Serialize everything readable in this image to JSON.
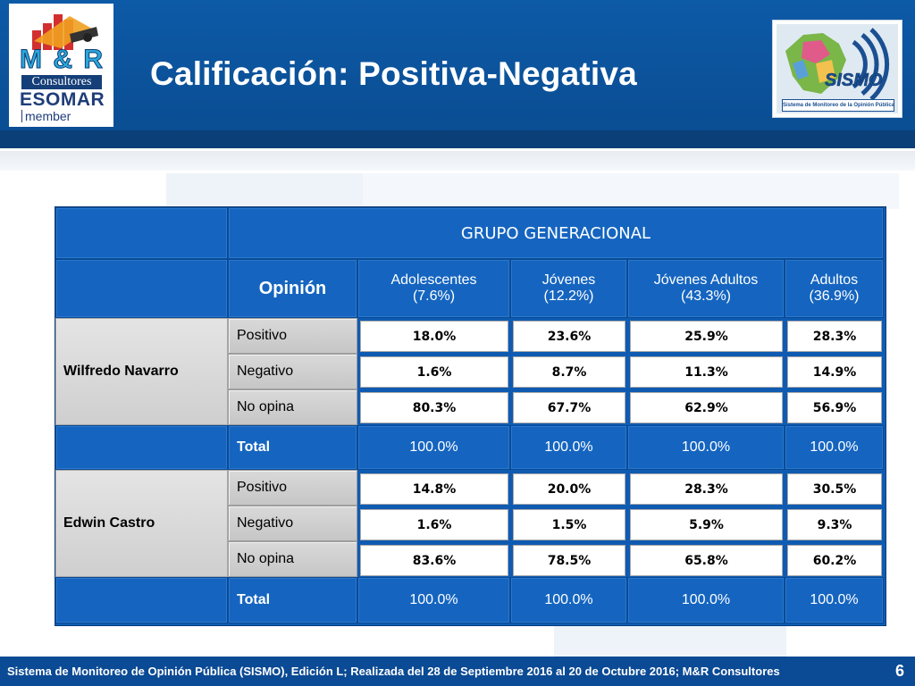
{
  "slide": {
    "title": "Calificación: Positiva-Negativa",
    "page_number": "6",
    "footer": "Sistema de Monitoreo de Opinión Pública (SISMO), Edición L; Realizada del 28 de Septiembre 2016 al 20 de Octubre 2016; M&R Consultores"
  },
  "logos": {
    "left": {
      "brand": "M & R",
      "sub": "Consultores",
      "esomar": "ESOMAR",
      "member": "member"
    },
    "right": {
      "brand": "SISMO",
      "caption": "Sistema de Monitoreo de la Opinión Pública"
    }
  },
  "table": {
    "group_header": "GRUPO GENERACIONAL",
    "opinion_header": "Opinión",
    "columns": [
      {
        "name": "Adolescentes",
        "pct": "(7.6%)"
      },
      {
        "name": "Jóvenes",
        "pct": "(12.2%)"
      },
      {
        "name": "Jóvenes Adultos",
        "pct": "(43.3%)"
      },
      {
        "name": "Adultos",
        "pct": "(36.9%)"
      }
    ],
    "persons": [
      {
        "name": "Wilfredo Navarro",
        "rows": [
          {
            "label": "Positivo",
            "values": [
              "18.0%",
              "23.6%",
              "25.9%",
              "28.3%"
            ]
          },
          {
            "label": "Negativo",
            "values": [
              "1.6%",
              "8.7%",
              "11.3%",
              "14.9%"
            ]
          },
          {
            "label": "No opina",
            "values": [
              "80.3%",
              "67.7%",
              "62.9%",
              "56.9%"
            ]
          }
        ],
        "total_label": "Total",
        "totals": [
          "100.0%",
          "100.0%",
          "100.0%",
          "100.0%"
        ]
      },
      {
        "name": "Edwin Castro",
        "rows": [
          {
            "label": "Positivo",
            "values": [
              "14.8%",
              "20.0%",
              "28.3%",
              "30.5%"
            ]
          },
          {
            "label": "Negativo",
            "values": [
              "1.6%",
              "1.5%",
              "5.9%",
              "9.3%"
            ]
          },
          {
            "label": "No opina",
            "values": [
              "83.6%",
              "78.5%",
              "65.8%",
              "60.2%"
            ]
          }
        ],
        "total_label": "Total",
        "totals": [
          "100.0%",
          "100.0%",
          "100.0%",
          "100.0%"
        ]
      }
    ]
  }
}
